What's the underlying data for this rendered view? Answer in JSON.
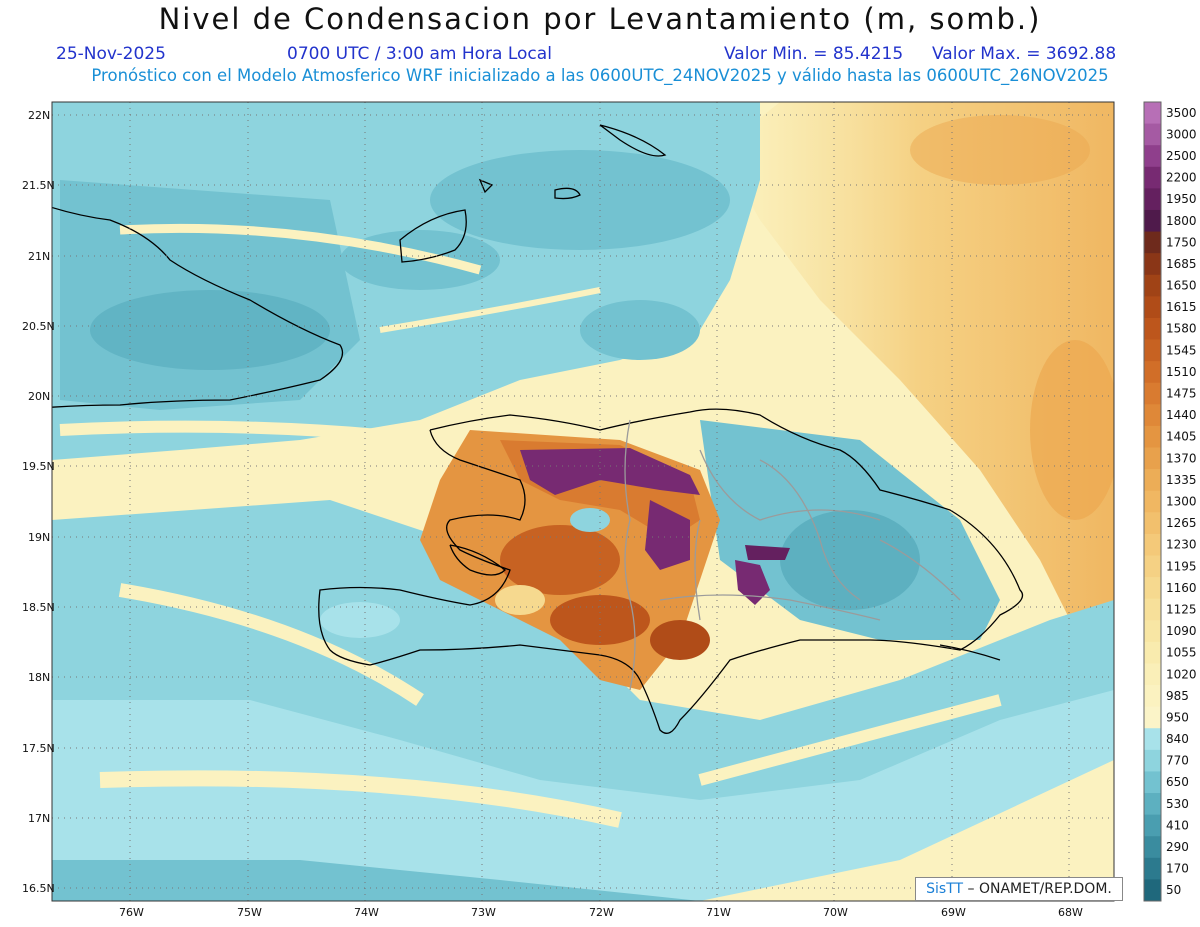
{
  "header": {
    "title": "Nivel de Condensacion por Levantamiento (m, somb.)",
    "date": "25-Nov-2025",
    "time": "0700 UTC / 3:00 am Hora Local",
    "min_label": "Valor Min. = 85.4215",
    "max_label": "Valor Max. = 3692.88",
    "subtitle": "Pronóstico con el Modelo Atmosferico WRF inicializado a las 0600UTC_24NOV2025 y válido hasta las  0600UTC_26NOV2025"
  },
  "colorbar": {
    "levels": [
      "3500",
      "3000",
      "2500",
      "2200",
      "1950",
      "1800",
      "1750",
      "1685",
      "1650",
      "1615",
      "1580",
      "1545",
      "1510",
      "1475",
      "1440",
      "1405",
      "1370",
      "1335",
      "1300",
      "1265",
      "1230",
      "1195",
      "1160",
      "1125",
      "1090",
      "1055",
      "1020",
      "985",
      "950",
      "840",
      "770",
      "650",
      "530",
      "410",
      "290",
      "170",
      "50"
    ],
    "colors": [
      "#b76fb6",
      "#a55aa3",
      "#8f3f8c",
      "#772a72",
      "#64205f",
      "#4f1a4b",
      "#6e2a1c",
      "#8a3617",
      "#a04316",
      "#b04c18",
      "#bd561c",
      "#c76222",
      "#d16e28",
      "#d97b30",
      "#df8838",
      "#e49541",
      "#e8a14c",
      "#ecad57",
      "#f0b762",
      "#f2c06d",
      "#f4c979",
      "#f5d184",
      "#f6d98f",
      "#f7e09a",
      "#f8e6a4",
      "#f9ebae",
      "#faefb8",
      "#fbf2c0",
      "#fbf4c8",
      "#a8e2ea",
      "#8ed4de",
      "#73c2d0",
      "#5db0c0",
      "#4a9eb0",
      "#3a8c9f",
      "#2c7a8e",
      "#1f687c"
    ]
  },
  "axes": {
    "lat_labels": [
      "22N",
      "21.5N",
      "21N",
      "20.5N",
      "20N",
      "19.5N",
      "19N",
      "18.5N",
      "18N",
      "17.5N",
      "17N",
      "16.5N"
    ],
    "lon_labels": [
      "76W",
      "75W",
      "74W",
      "73W",
      "72W",
      "71W",
      "70W",
      "69W",
      "68W"
    ]
  },
  "credit": {
    "brand": "SisTT",
    "text": " – ONAMET/REP.DOM."
  }
}
